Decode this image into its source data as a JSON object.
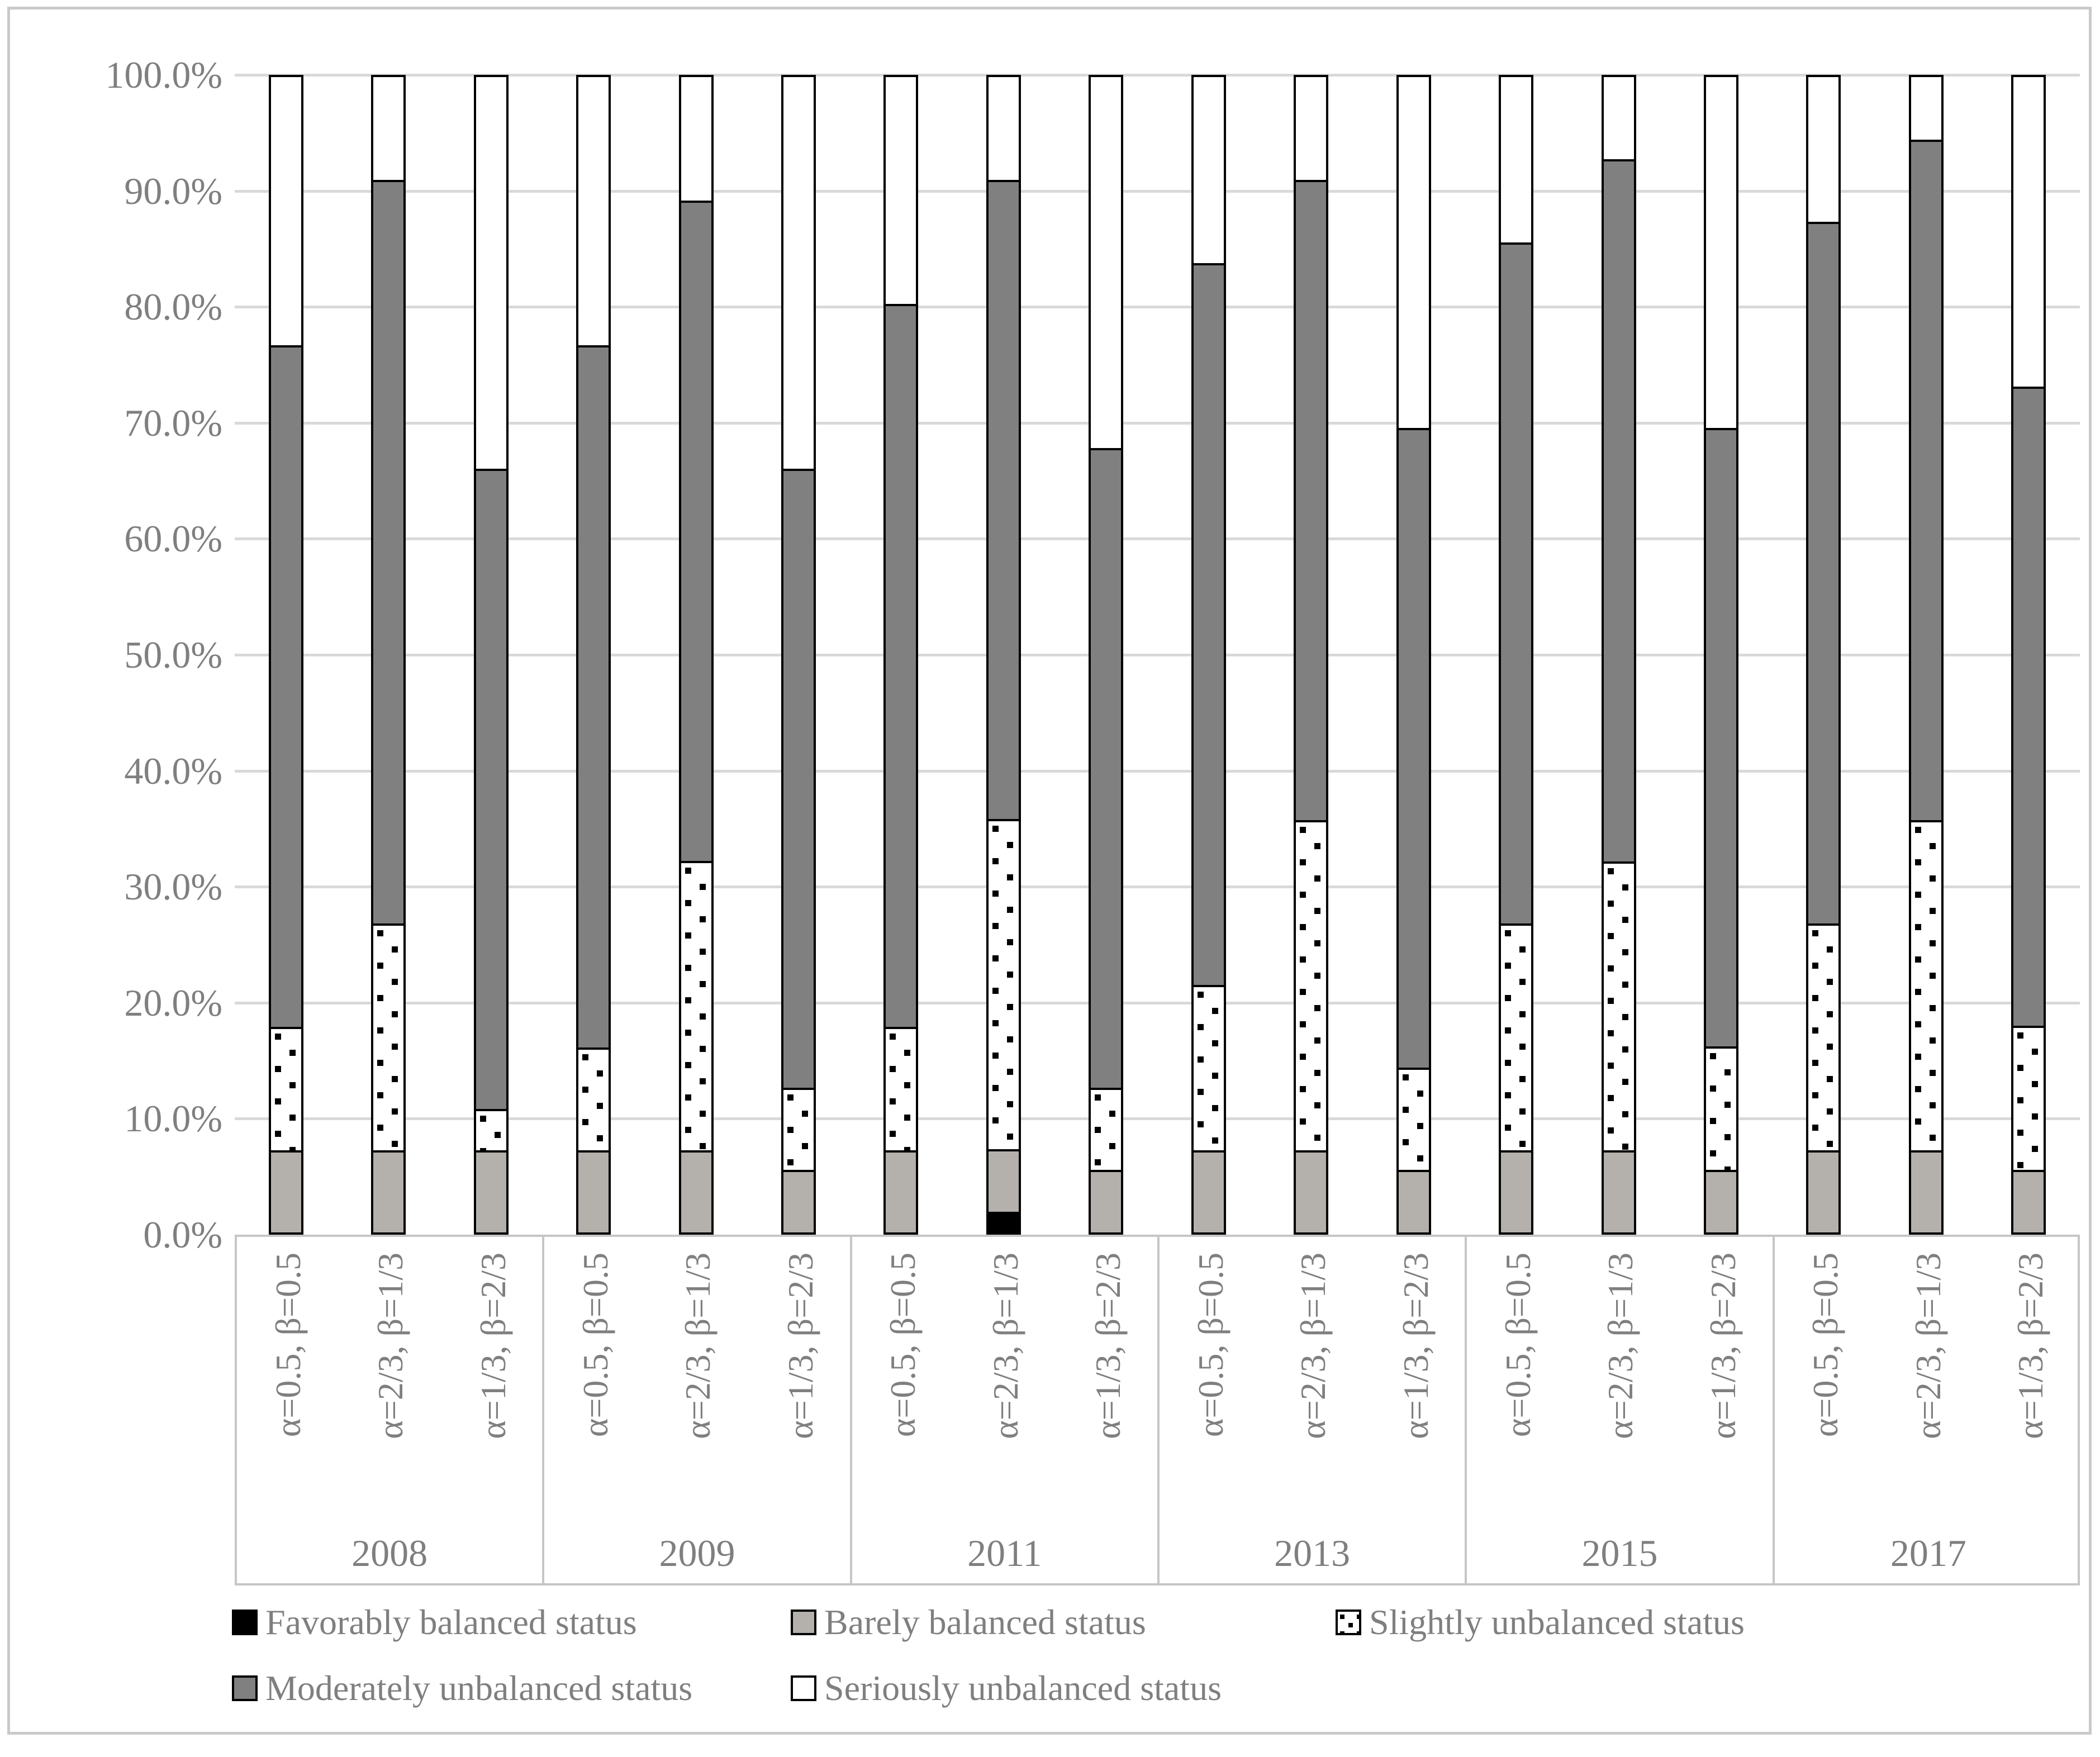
{
  "figure": {
    "background": "#ffffff",
    "frame_color": "#c9c9c9",
    "gridline_color": "#d9d9d9",
    "axis_text_color": "#7f7f7f"
  },
  "chart_data": {
    "type": "bar",
    "stacked": true,
    "value_unit": "percent",
    "title": "",
    "xlabel": "",
    "ylabel": "",
    "ylim": [
      0,
      100
    ],
    "grid": true,
    "legend_position": "bottom",
    "ytick_labels": [
      "0.0%",
      "10.0%",
      "20.0%",
      "30.0%",
      "40.0%",
      "50.0%",
      "60.0%",
      "70.0%",
      "80.0%",
      "90.0%",
      "100.0%"
    ],
    "categories": [
      "2008",
      "2009",
      "2011",
      "2013",
      "2015",
      "2017"
    ],
    "subcategories": [
      "α=0.5,  β=0.5",
      "α=2/3,  β=1/3",
      "α=1/3,  β=2/3"
    ],
    "series": [
      {
        "name": "Favorably balanced status",
        "style": "solid",
        "color": "#000000",
        "values": [
          0,
          0,
          0,
          0,
          0,
          0,
          0,
          1.8,
          0,
          0,
          0,
          0,
          0,
          0,
          0,
          0,
          0,
          0
        ]
      },
      {
        "name": "Barely balanced status",
        "style": "solid",
        "color": "#b4b1ad",
        "values": [
          7.1,
          7.1,
          7.1,
          7.1,
          7.1,
          5.4,
          7.1,
          5.4,
          5.4,
          7.1,
          7.1,
          5.4,
          7.1,
          7.1,
          5.4,
          7.1,
          7.1,
          5.4
        ]
      },
      {
        "name": "Slightly unbalanced status",
        "style": "dotted",
        "color": "#ffffff",
        "values": [
          10.7,
          19.6,
          3.6,
          8.9,
          25.0,
          7.1,
          10.7,
          28.6,
          7.1,
          14.3,
          28.6,
          8.9,
          19.6,
          25.0,
          10.7,
          19.6,
          28.6,
          12.5
        ]
      },
      {
        "name": "Moderately unbalanced status",
        "style": "solid",
        "color": "#808080",
        "values": [
          58.9,
          64.3,
          55.4,
          60.7,
          57.1,
          53.6,
          62.5,
          55.4,
          55.4,
          62.5,
          55.4,
          55.4,
          58.9,
          60.7,
          53.6,
          60.7,
          58.9,
          55.4
        ]
      },
      {
        "name": "Seriously unbalanced status",
        "style": "solid",
        "color": "#ffffff",
        "values": [
          23.2,
          8.9,
          33.9,
          23.2,
          10.7,
          33.9,
          19.6,
          8.9,
          32.1,
          16.1,
          8.9,
          30.4,
          14.3,
          7.1,
          30.4,
          12.5,
          5.4,
          26.8
        ]
      }
    ]
  }
}
